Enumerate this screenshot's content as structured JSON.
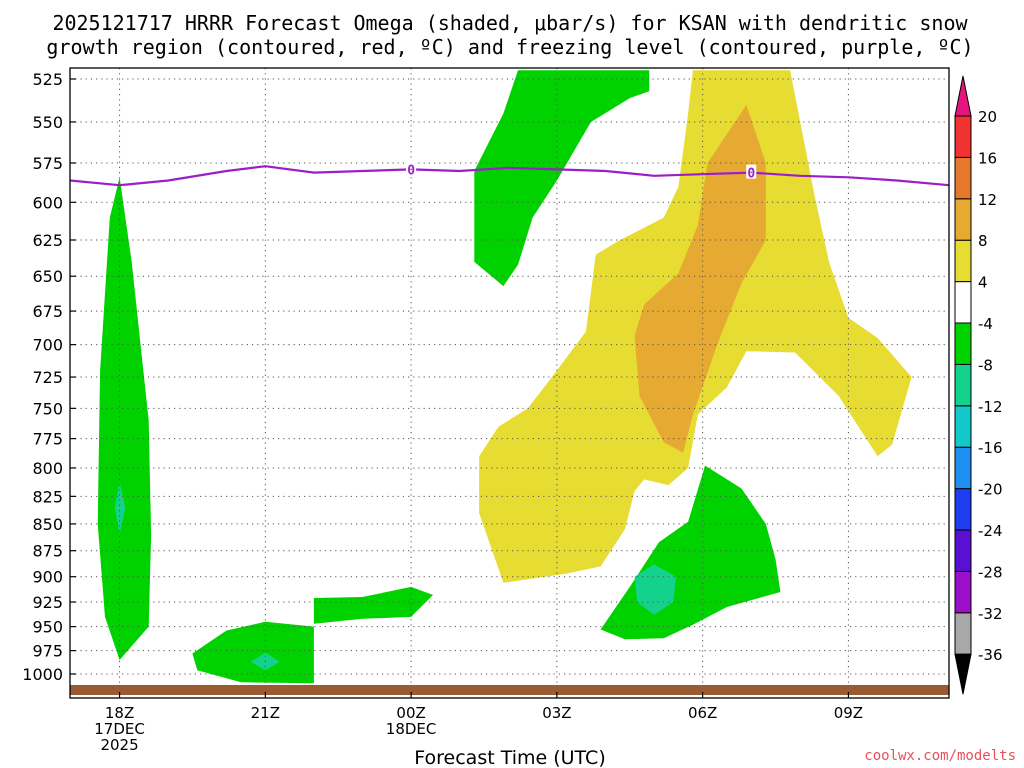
{
  "chart_data": {
    "type": "contour",
    "title_line1": "2025121717 HRRR Forecast Omega (shaded, μbar/s) for KSAN with dendritic snow",
    "title_line2": "growth region (contoured, red, ºC) and freezing level (contoured, purple, ºC)",
    "xlabel": "Forecast Time (UTC)",
    "credit": "coolwx.com/modelts",
    "x_ticks": [
      {
        "hour": 18,
        "lines": [
          "18Z",
          "17DEC",
          "2025"
        ]
      },
      {
        "hour": 21,
        "lines": [
          "21Z"
        ]
      },
      {
        "hour": 24,
        "lines": [
          "00Z",
          "18DEC"
        ]
      },
      {
        "hour": 27,
        "lines": [
          "03Z"
        ]
      },
      {
        "hour": 30,
        "lines": [
          "06Z"
        ]
      },
      {
        "hour": 33,
        "lines": [
          "09Z"
        ]
      }
    ],
    "x_range_hours": [
      16.98,
      35.07
    ],
    "y_ticks_mb": [
      525,
      550,
      575,
      600,
      625,
      650,
      675,
      700,
      725,
      750,
      775,
      800,
      825,
      850,
      875,
      900,
      925,
      950,
      975,
      1000
    ],
    "colorbar": {
      "levels": [
        -36,
        -32,
        -28,
        -24,
        -20,
        -16,
        -12,
        -8,
        -4,
        4,
        8,
        12,
        16,
        20
      ],
      "colors": [
        "#000000",
        "#a8a8a8",
        "#9b0fc8",
        "#5a10d2",
        "#1e3cf0",
        "#1e8ef0",
        "#12c8c8",
        "#12d28c",
        "#00d200",
        "#ffffff",
        "#e6dc32",
        "#e6aa32",
        "#e6782d",
        "#f03232",
        "#e6147f"
      ]
    },
    "freezing_level": {
      "label": "0",
      "points": [
        [
          16.98,
          586
        ],
        [
          18.0,
          589
        ],
        [
          19.0,
          586
        ],
        [
          20.2,
          580
        ],
        [
          21.0,
          577
        ],
        [
          22.0,
          581
        ],
        [
          23.0,
          580
        ],
        [
          24.0,
          579
        ],
        [
          25.0,
          580
        ],
        [
          26.0,
          578
        ],
        [
          27.0,
          579
        ],
        [
          28.0,
          580
        ],
        [
          29.0,
          583
        ],
        [
          30.0,
          582
        ],
        [
          31.0,
          581
        ],
        [
          32.0,
          583
        ],
        [
          33.0,
          584
        ],
        [
          34.0,
          586
        ],
        [
          35.07,
          589
        ]
      ]
    },
    "omega_regions": [
      {
        "name": "omega-region-minus4-18z",
        "value_range": [
          -8,
          -4
        ],
        "points": [
          [
            18.0,
            584
          ],
          [
            18.25,
            640
          ],
          [
            18.6,
            760
          ],
          [
            18.65,
            860
          ],
          [
            18.6,
            950
          ],
          [
            18.0,
            985
          ],
          [
            17.7,
            940
          ],
          [
            17.55,
            850
          ],
          [
            17.6,
            720
          ],
          [
            17.8,
            610
          ]
        ]
      },
      {
        "name": "omega-region-minus8-18z",
        "value_range": [
          -12,
          -8
        ],
        "points": [
          [
            18.0,
            812
          ],
          [
            18.12,
            835
          ],
          [
            18.0,
            860
          ],
          [
            17.9,
            835
          ]
        ]
      },
      {
        "name": "omega-region-minus4-21z",
        "value_range": [
          -8,
          -4
        ],
        "points": [
          [
            19.5,
            978
          ],
          [
            20.2,
            954
          ],
          [
            21.0,
            945
          ],
          [
            22.0,
            950
          ],
          [
            22.0,
            1010
          ],
          [
            20.5,
            1009
          ],
          [
            19.6,
            996
          ]
        ]
      },
      {
        "name": "omega-region-minus8-21z",
        "value_range": [
          -12,
          -8
        ],
        "points": [
          [
            21.0,
            977
          ],
          [
            21.3,
            987
          ],
          [
            21.0,
            996
          ],
          [
            20.7,
            987
          ]
        ]
      },
      {
        "name": "omega-region-minus4-2330z",
        "value_range": [
          -8,
          -4
        ],
        "points": [
          [
            22.0,
            921
          ],
          [
            23.0,
            920
          ],
          [
            24.0,
            910
          ],
          [
            24.45,
            918
          ],
          [
            24.0,
            940
          ],
          [
            23.0,
            942
          ],
          [
            22.0,
            947
          ]
        ]
      },
      {
        "name": "omega-region-minus4-02z",
        "value_range": [
          -8,
          -4
        ],
        "points": [
          [
            26.2,
            520
          ],
          [
            28.9,
            520
          ],
          [
            28.9,
            532
          ],
          [
            28.5,
            536
          ],
          [
            27.7,
            550
          ],
          [
            27.0,
            586
          ],
          [
            26.5,
            610
          ],
          [
            26.2,
            642
          ],
          [
            25.9,
            657
          ],
          [
            25.3,
            640
          ],
          [
            25.3,
            580
          ],
          [
            25.9,
            545
          ]
        ]
      },
      {
        "name": "omega-region-plus4-0530z",
        "value_range": [
          4,
          8
        ],
        "points": [
          [
            29.8,
            520
          ],
          [
            31.8,
            520
          ],
          [
            32.3,
            595
          ],
          [
            32.6,
            640
          ],
          [
            33.0,
            680
          ],
          [
            33.6,
            695
          ],
          [
            34.3,
            725
          ],
          [
            33.9,
            780
          ],
          [
            33.6,
            790
          ],
          [
            32.8,
            740
          ],
          [
            31.9,
            706
          ],
          [
            30.9,
            705
          ],
          [
            30.5,
            733
          ],
          [
            29.9,
            755
          ],
          [
            29.7,
            800
          ],
          [
            29.3,
            815
          ],
          [
            28.8,
            810
          ],
          [
            28.6,
            820
          ],
          [
            28.4,
            855
          ],
          [
            27.9,
            890
          ],
          [
            27.2,
            897
          ],
          [
            25.9,
            906
          ],
          [
            25.4,
            840
          ],
          [
            25.4,
            790
          ],
          [
            25.8,
            765
          ],
          [
            26.4,
            750
          ],
          [
            26.9,
            725
          ],
          [
            27.6,
            690
          ],
          [
            27.8,
            635
          ],
          [
            28.3,
            625
          ],
          [
            29.2,
            610
          ],
          [
            29.5,
            590
          ],
          [
            29.7,
            545
          ]
        ]
      },
      {
        "name": "omega-region-plus8-06z",
        "value_range": [
          8,
          12
        ],
        "points": [
          [
            30.9,
            540
          ],
          [
            31.3,
            575
          ],
          [
            31.3,
            625
          ],
          [
            30.8,
            655
          ],
          [
            30.3,
            700
          ],
          [
            29.8,
            755
          ],
          [
            29.6,
            787
          ],
          [
            29.2,
            778
          ],
          [
            28.7,
            740
          ],
          [
            28.6,
            693
          ],
          [
            28.8,
            670
          ],
          [
            29.5,
            648
          ],
          [
            29.9,
            615
          ],
          [
            30.1,
            575
          ]
        ]
      },
      {
        "name": "omega-region-minus4-05z",
        "value_range": [
          -8,
          -4
        ],
        "points": [
          [
            30.05,
            798
          ],
          [
            30.8,
            818
          ],
          [
            31.3,
            850
          ],
          [
            31.5,
            883
          ],
          [
            31.6,
            915
          ],
          [
            30.5,
            930
          ],
          [
            29.8,
            948
          ],
          [
            29.2,
            962
          ],
          [
            28.4,
            963
          ],
          [
            27.9,
            953
          ],
          [
            28.5,
            910
          ],
          [
            29.1,
            867
          ],
          [
            29.7,
            848
          ]
        ]
      },
      {
        "name": "omega-region-minus8-05z",
        "value_range": [
          -12,
          -8
        ],
        "points": [
          [
            29.0,
            888
          ],
          [
            29.45,
            900
          ],
          [
            29.4,
            925
          ],
          [
            29.0,
            938
          ],
          [
            28.65,
            925
          ],
          [
            28.6,
            900
          ]
        ]
      }
    ]
  }
}
